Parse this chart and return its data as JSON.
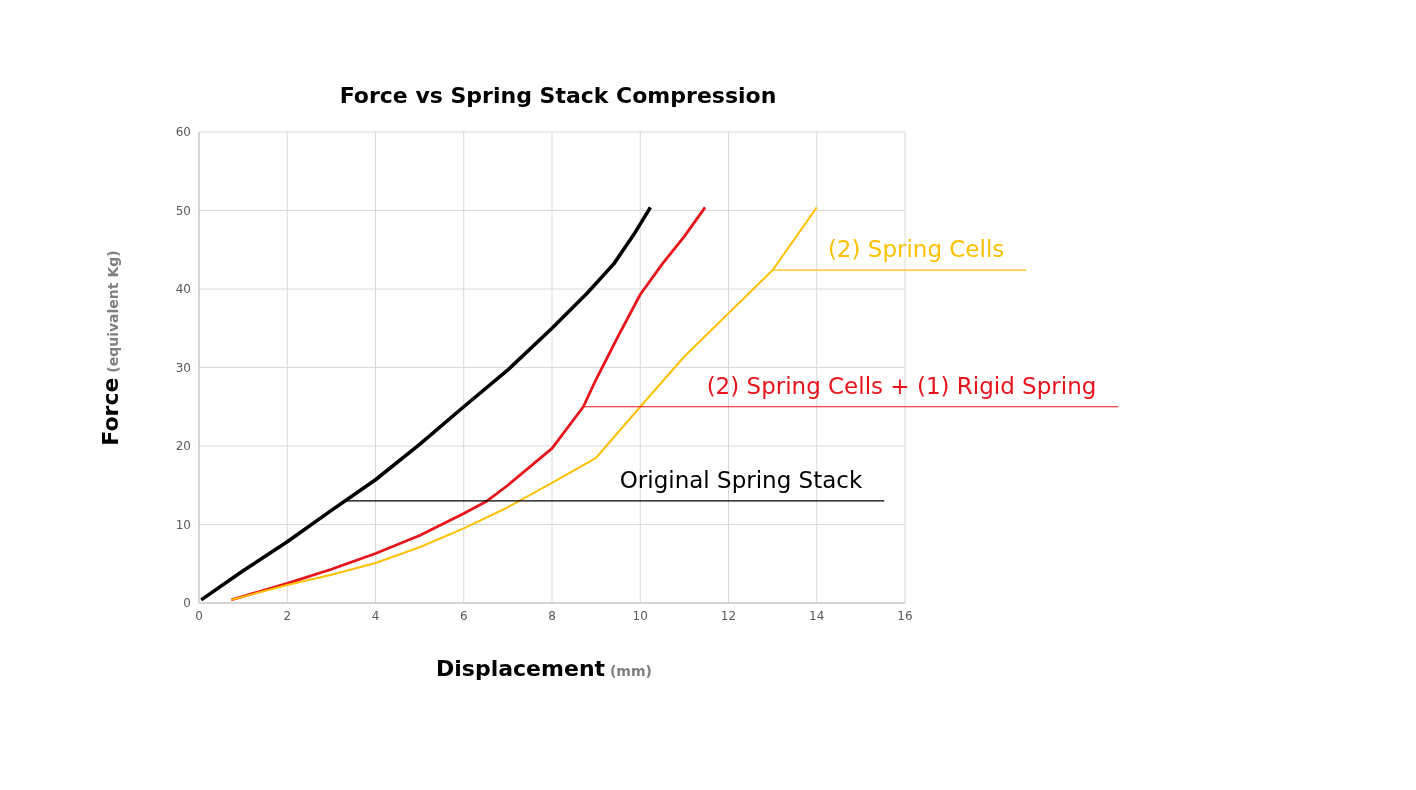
{
  "chart_data": {
    "type": "line",
    "title": "Force vs Spring Stack Compression",
    "xlabel": "Displacement (mm)",
    "ylabel": "Force (equivalent Kg)",
    "xlim": [
      0,
      16
    ],
    "xticks": [
      0,
      2,
      4,
      6,
      8,
      10,
      12,
      14,
      16
    ],
    "ylim": [
      0,
      60
    ],
    "yticks": [
      0,
      10,
      20,
      30,
      40,
      50,
      60
    ],
    "grid": true,
    "marker": "none",
    "line_style": "solid",
    "series": [
      {
        "color": "#000000",
        "x": [
          0.05,
          1,
          2,
          3,
          4,
          5,
          6,
          7,
          8,
          8.8,
          9.4,
          9.85,
          10.23
        ],
        "values": [
          0.4,
          4.1,
          7.8,
          11.8,
          15.7,
          20.2,
          25.0,
          29.7,
          35.0,
          39.5,
          43.2,
          46.9,
          50.4
        ]
      },
      {
        "color": "#e8141b",
        "x": [
          0.73,
          2,
          3,
          4,
          5,
          6,
          6.53,
          7,
          8,
          8.71,
          9,
          9.5,
          10,
          10.5,
          11,
          11.47
        ],
        "values": [
          0.4,
          2.5,
          4.3,
          6.3,
          8.6,
          11.4,
          13.0,
          15.0,
          19.7,
          25.0,
          28.5,
          34.0,
          39.3,
          43.2,
          46.7,
          50.4
        ]
      },
      {
        "color": "#ffc000",
        "x": [
          0.73,
          2,
          3,
          4,
          5,
          6,
          7,
          8,
          9,
          10,
          11,
          12,
          13,
          14
        ],
        "values": [
          0.4,
          2.3,
          3.6,
          5.1,
          7.1,
          9.5,
          12.2,
          15.3,
          18.5,
          25.0,
          31.4,
          36.9,
          42.4,
          50.4
        ]
      }
    ],
    "annotations": [
      {
        "text": "Original Spring Stack",
        "x": 3.27,
        "y": 13
      },
      {
        "text": "(2) Spring Cells + (1) Rigid Spring",
        "x": 8.71,
        "y": 25
      },
      {
        "text": "(2) Spring Cells",
        "x": 12.97,
        "y": 42.4
      }
    ]
  }
}
